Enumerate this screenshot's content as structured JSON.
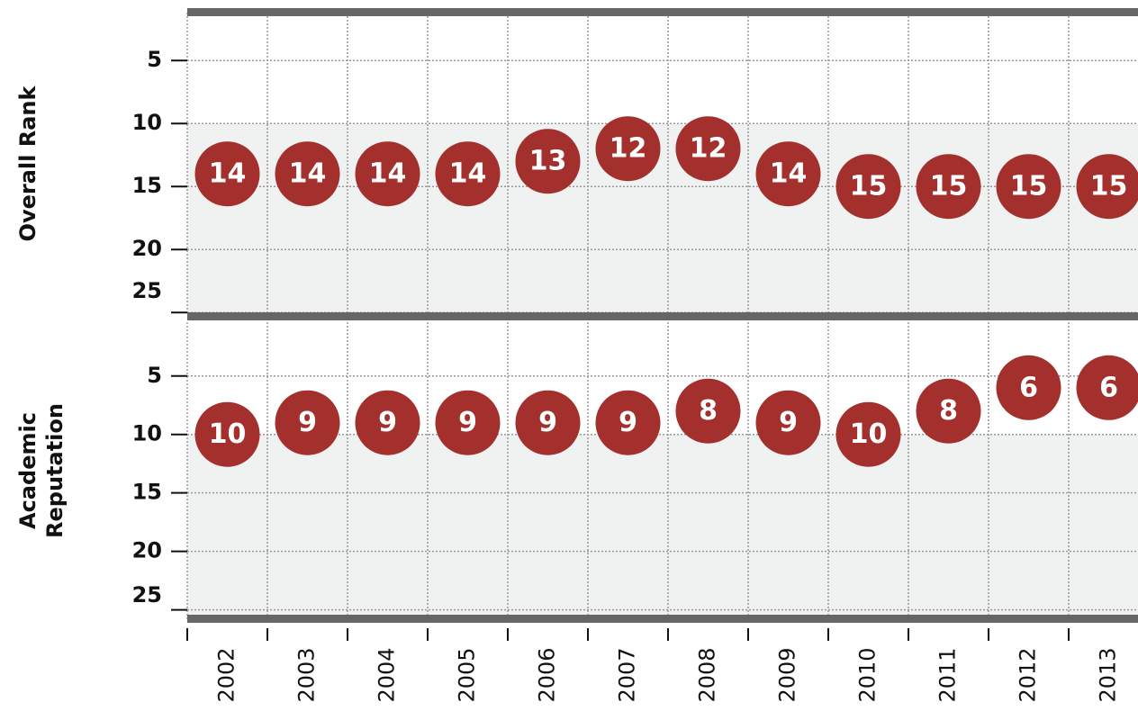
{
  "chart_data": [
    {
      "type": "dot",
      "ylabel": "Overall Rank",
      "color": "#a3302c",
      "grid": true,
      "inverted": true,
      "band_from": 10,
      "values": [
        14,
        14,
        14,
        14,
        13,
        12,
        12,
        14,
        15,
        15,
        15,
        15
      ],
      "ylim": [
        1.2,
        25.2
      ],
      "yticks": [
        5,
        10,
        15,
        20,
        25
      ]
    },
    {
      "type": "dot",
      "ylabel": [
        "Academic",
        "Reputation"
      ],
      "color": "#a3302c",
      "grid": true,
      "inverted": true,
      "band_from": 10,
      "categories": [
        "2002",
        "2003",
        "2004",
        "2005",
        "2006",
        "2007",
        "2008",
        "2009",
        "2010",
        "2011",
        "2012",
        "2013"
      ],
      "values": [
        10,
        9,
        9,
        9,
        9,
        9,
        8,
        9,
        10,
        8,
        6,
        6
      ],
      "ylim": [
        0.4,
        25.8
      ],
      "yticks": [
        5,
        10,
        15,
        20,
        25
      ]
    }
  ]
}
